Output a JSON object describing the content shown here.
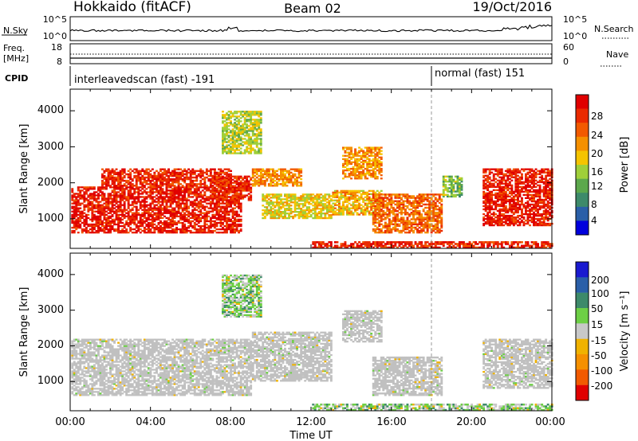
{
  "header": {
    "station": "Hokkaido (fitACF)",
    "beam": "Beam 02",
    "date": "19/Oct/2016"
  },
  "noise_panel": {
    "left_label": "N.Sky",
    "right_label": "N.Search",
    "left_ticks": [
      "10^5",
      "10^0"
    ],
    "right_ticks": [
      "10^5",
      "10^0"
    ]
  },
  "freq_panel": {
    "left_label_line1": "Freq.",
    "left_label_line2": "[MHz]",
    "right_label": "Nave",
    "left_ticks": [
      "18",
      "8"
    ],
    "right_ticks": [
      "60",
      "0"
    ]
  },
  "cpid": {
    "label": "CPID",
    "segments": [
      {
        "name": "interleavedscan (fast) -191",
        "start_hour": 0,
        "end_hour": 18
      },
      {
        "name": "normal (fast) 151",
        "start_hour": 18,
        "end_hour": 24
      }
    ]
  },
  "axes": {
    "y_label": "Slant Range [km]",
    "x_label": "Time UT",
    "y_ticks": [
      "4000",
      "3000",
      "2000",
      "1000"
    ],
    "x_ticks": [
      "00:00",
      "04:00",
      "08:00",
      "12:00",
      "16:00",
      "20:00",
      "00:00"
    ]
  },
  "power_colorbar": {
    "label": "Power [dB]",
    "ticks": [
      "28",
      "24",
      "20",
      "16",
      "12",
      "8",
      "4"
    ]
  },
  "velocity_colorbar": {
    "label": "Velocity [m s⁻¹]",
    "ticks": [
      "200",
      "100",
      "50",
      "15",
      "-15",
      "-50",
      "-100",
      "-200"
    ]
  },
  "colors": {
    "power_scale": [
      "#0000dd",
      "#2a5fa8",
      "#3d8a6a",
      "#5ca84c",
      "#9fcf3a",
      "#f5c400",
      "#f59000",
      "#f25a00",
      "#ea2a00",
      "#e00000"
    ],
    "velocity_scale": [
      "#e00000",
      "#f25a00",
      "#f59000",
      "#f0b200",
      "#c8c8c8",
      "#6dcf45",
      "#3d8a6a",
      "#2a5fa8",
      "#1a1ad0"
    ],
    "ground_scatter": "#c0c0c0"
  },
  "chart_data": [
    {
      "type": "heatmap",
      "title": "Power",
      "xlabel": "Time UT",
      "ylabel": "Slant Range [km]",
      "xlim": [
        0,
        24
      ],
      "ylim": [
        180,
        4600
      ],
      "colorbar": {
        "label": "Power [dB]",
        "range": [
          0,
          30
        ]
      },
      "regions": [
        {
          "t": [
            0.0,
            8.5
          ],
          "r": [
            600,
            1900
          ],
          "v": 27
        },
        {
          "t": [
            1.5,
            8.0
          ],
          "r": [
            1900,
            2400
          ],
          "v": 26
        },
        {
          "t": [
            7.0,
            9.0
          ],
          "r": [
            1500,
            2200
          ],
          "v": 26
        },
        {
          "t": [
            9.0,
            11.5
          ],
          "r": [
            1900,
            2400
          ],
          "v": 20
        },
        {
          "t": [
            9.5,
            13.0
          ],
          "r": [
            1000,
            1700
          ],
          "v": 16
        },
        {
          "t": [
            13.5,
            15.5
          ],
          "r": [
            2100,
            3000
          ],
          "v": 20
        },
        {
          "t": [
            13.0,
            15.5
          ],
          "r": [
            1100,
            1800
          ],
          "v": 18
        },
        {
          "t": [
            15.0,
            18.5
          ],
          "r": [
            600,
            1700
          ],
          "v": 22
        },
        {
          "t": [
            20.5,
            24.0
          ],
          "r": [
            800,
            2400
          ],
          "v": 27
        },
        {
          "t": [
            7.5,
            9.5
          ],
          "r": [
            2800,
            4000
          ],
          "v": 14
        },
        {
          "t": [
            12.0,
            24.0
          ],
          "r": [
            180,
            380
          ],
          "v": 26
        },
        {
          "t": [
            18.5,
            19.5
          ],
          "r": [
            1600,
            2200
          ],
          "v": 12
        }
      ]
    },
    {
      "type": "heatmap",
      "title": "Velocity",
      "xlabel": "Time UT",
      "ylabel": "Slant Range [km]",
      "xlim": [
        0,
        24
      ],
      "ylim": [
        180,
        4600
      ],
      "colorbar": {
        "label": "Velocity [m s-1]",
        "range": [
          -200,
          200
        ]
      },
      "regions": [
        {
          "t": [
            0.0,
            9.0
          ],
          "r": [
            600,
            2200
          ],
          "v": 0,
          "ground_scatter": true
        },
        {
          "t": [
            9.0,
            13.0
          ],
          "r": [
            1000,
            2400
          ],
          "v": 0,
          "ground_scatter": true
        },
        {
          "t": [
            13.5,
            15.5
          ],
          "r": [
            2100,
            3000
          ],
          "v": 0,
          "ground_scatter": true
        },
        {
          "t": [
            15.0,
            18.5
          ],
          "r": [
            600,
            1700
          ],
          "v": 0,
          "ground_scatter": true
        },
        {
          "t": [
            20.5,
            24.0
          ],
          "r": [
            800,
            2200
          ],
          "v": 0,
          "ground_scatter": true
        },
        {
          "t": [
            7.5,
            9.5
          ],
          "r": [
            2800,
            4000
          ],
          "v": 30
        },
        {
          "t": [
            12.0,
            24.0
          ],
          "r": [
            180,
            380
          ],
          "v": 25
        }
      ]
    }
  ]
}
